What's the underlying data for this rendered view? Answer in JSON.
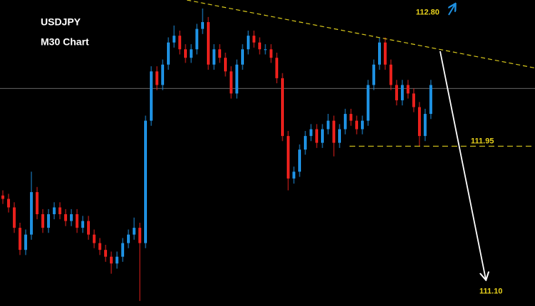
{
  "chart_data": {
    "type": "candlestick",
    "title": "USDJPY",
    "subtitle": "M30 Chart",
    "up_color": "#1e90e0",
    "down_color": "#e8201c",
    "ylim": [
      111.01,
      112.81
    ],
    "open": [
      111.66,
      111.64,
      111.59,
      111.47,
      111.34,
      111.43,
      111.68,
      111.55,
      111.47,
      111.55,
      111.59,
      111.55,
      111.51,
      111.55,
      111.47,
      111.51,
      111.43,
      111.38,
      111.34,
      111.3,
      111.26,
      111.3,
      111.38,
      111.43,
      111.47,
      111.38,
      112.1,
      112.39,
      112.31,
      112.43,
      112.56,
      112.6,
      112.52,
      112.47,
      112.52,
      112.64,
      112.68,
      112.43,
      112.52,
      112.47,
      112.39,
      112.26,
      112.43,
      112.52,
      112.6,
      112.56,
      112.52,
      112.52,
      112.47,
      112.35,
      112.01,
      111.76,
      111.8,
      111.93,
      112.01,
      112.05,
      111.97,
      112.05,
      112.1,
      111.97,
      112.05,
      112.14,
      112.1,
      112.05,
      112.1,
      112.31,
      112.43,
      112.56,
      112.43,
      112.31,
      112.22,
      112.31,
      112.26,
      112.18,
      112.01,
      112.14
    ],
    "high": [
      111.69,
      111.67,
      111.62,
      111.5,
      111.46,
      111.8,
      111.71,
      111.58,
      111.58,
      111.62,
      111.62,
      111.58,
      111.58,
      111.58,
      111.54,
      111.54,
      111.46,
      111.41,
      111.37,
      111.33,
      111.33,
      111.41,
      111.46,
      111.53,
      111.5,
      112.13,
      112.42,
      112.42,
      112.46,
      112.59,
      112.66,
      112.63,
      112.55,
      112.55,
      112.67,
      112.76,
      112.71,
      112.55,
      112.55,
      112.5,
      112.42,
      112.46,
      112.55,
      112.63,
      112.63,
      112.59,
      112.55,
      112.55,
      112.5,
      112.38,
      112.04,
      111.83,
      111.96,
      112.04,
      112.08,
      112.08,
      112.08,
      112.14,
      112.13,
      112.08,
      112.17,
      112.17,
      112.13,
      112.13,
      112.34,
      112.46,
      112.59,
      112.59,
      112.46,
      112.34,
      112.34,
      112.34,
      112.29,
      112.21,
      112.17,
      112.34
    ],
    "low": [
      111.61,
      111.56,
      111.44,
      111.31,
      111.31,
      111.4,
      111.52,
      111.44,
      111.44,
      111.52,
      111.52,
      111.48,
      111.48,
      111.44,
      111.44,
      111.4,
      111.35,
      111.31,
      111.27,
      111.2,
      111.23,
      111.27,
      111.35,
      111.4,
      111.04,
      111.35,
      112.07,
      112.28,
      112.28,
      112.4,
      112.53,
      112.49,
      112.44,
      112.44,
      112.49,
      112.61,
      112.4,
      112.4,
      112.44,
      112.36,
      112.23,
      112.23,
      112.4,
      112.49,
      112.53,
      112.49,
      112.49,
      112.44,
      112.32,
      111.98,
      111.69,
      111.73,
      111.77,
      111.9,
      111.98,
      111.94,
      111.94,
      112.02,
      111.89,
      111.94,
      112.02,
      112.07,
      112.02,
      112.02,
      112.07,
      112.28,
      112.4,
      112.4,
      112.28,
      112.19,
      112.19,
      112.23,
      112.15,
      111.95,
      111.98,
      112.11
    ],
    "close": [
      111.64,
      111.59,
      111.47,
      111.34,
      111.43,
      111.68,
      111.55,
      111.47,
      111.55,
      111.59,
      111.55,
      111.51,
      111.55,
      111.47,
      111.51,
      111.43,
      111.38,
      111.34,
      111.3,
      111.26,
      111.3,
      111.38,
      111.43,
      111.47,
      111.38,
      112.1,
      112.39,
      112.31,
      112.43,
      112.56,
      112.6,
      112.52,
      112.47,
      112.52,
      112.64,
      112.68,
      112.43,
      112.52,
      112.47,
      112.39,
      112.26,
      112.43,
      112.52,
      112.6,
      112.56,
      112.52,
      112.52,
      112.47,
      112.35,
      112.01,
      111.76,
      111.8,
      111.93,
      112.01,
      112.05,
      111.97,
      112.05,
      112.1,
      111.97,
      112.05,
      112.14,
      112.1,
      112.05,
      112.1,
      112.31,
      112.43,
      112.56,
      112.43,
      112.31,
      112.22,
      112.31,
      112.26,
      112.18,
      112.01,
      112.14,
      112.31
    ],
    "reference_line": 112.29,
    "trendline": [
      112.81,
      112.41
    ],
    "resistance": {
      "value": 112.8,
      "label": "112.80"
    },
    "support": {
      "value": 111.95,
      "label": "111.95"
    },
    "target": {
      "value": 111.1,
      "label": "111.10"
    }
  }
}
